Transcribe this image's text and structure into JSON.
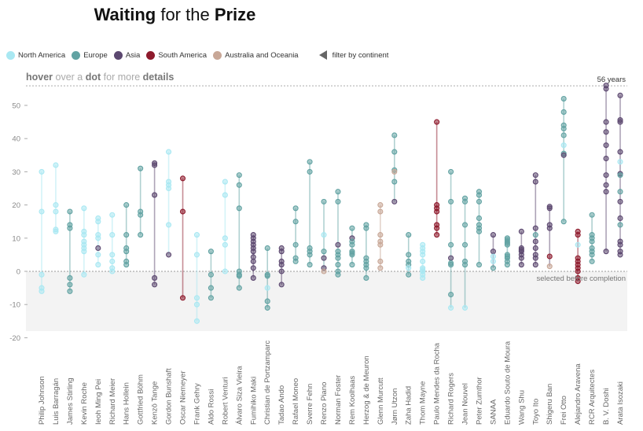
{
  "title": {
    "part1": "Waiting",
    "part2": " for the ",
    "part3": "Prize"
  },
  "legend": {
    "items": [
      {
        "code": "NA",
        "label": "North America",
        "color": "#a9e8f2"
      },
      {
        "code": "EU",
        "label": "Europe",
        "color": "#62a3a3"
      },
      {
        "code": "AS",
        "label": "Asia",
        "color": "#5c4870"
      },
      {
        "code": "SA",
        "label": "South America",
        "color": "#8e1a2c"
      },
      {
        "code": "AU",
        "label": "Australia and Oceania",
        "color": "#c8a797"
      }
    ],
    "filter_label": "filter by continent",
    "filter_icon": "triangle-left-icon"
  },
  "hint": {
    "w1": "hover",
    "w2": " over a ",
    "w3": "dot",
    "w4": " for more ",
    "w5": "details"
  },
  "chart_data": {
    "type": "scatter",
    "title": "Waiting for the Prize",
    "ylim": [
      -20,
      56
    ],
    "yticks": [
      -20,
      -10,
      0,
      10,
      20,
      30,
      40,
      50
    ],
    "max_line": {
      "value": 56,
      "label": "56 years"
    },
    "shaded_region": {
      "from": -18,
      "to": 0,
      "label": "selected before completion"
    },
    "grid": false,
    "legend_position": "top-left",
    "architects": [
      {
        "name": "Philip Johnson",
        "c": "NA",
        "dots": [
          30,
          18,
          -1,
          -5,
          -6
        ]
      },
      {
        "name": "Luis Barragán",
        "c": "NA",
        "dots": [
          32,
          20,
          18,
          12.6,
          12
        ]
      },
      {
        "name": "James Stirling",
        "c": "EU",
        "dots": [
          18,
          14,
          13,
          -2,
          -4,
          -6
        ]
      },
      {
        "name": "Kevin Roche",
        "c": "NA",
        "dots": [
          19,
          12,
          11,
          9,
          8,
          7,
          6,
          -1
        ]
      },
      {
        "name": "Ieoh Ming Pei",
        "c": "NA",
        "dots": [
          16,
          15,
          11,
          10,
          [
            7,
            "AS"
          ],
          5,
          2
        ]
      },
      {
        "name": "Richard Meier",
        "c": "NA",
        "dots": [
          17,
          11,
          5,
          3,
          1,
          0
        ]
      },
      {
        "name": "Hans Hollein",
        "c": "EU",
        "dots": [
          20,
          11,
          7,
          6,
          3,
          2
        ]
      },
      {
        "name": "Gottfried Böhm",
        "c": "EU",
        "dots": [
          31,
          18,
          17,
          11
        ]
      },
      {
        "name": "Kenzō Tange",
        "c": "AS",
        "dots": [
          32.6,
          32,
          23,
          -2,
          -4
        ]
      },
      {
        "name": "Gordon Bunshaft",
        "c": "NA",
        "dots": [
          36,
          27,
          26,
          25,
          14,
          [
            5,
            "AS"
          ]
        ]
      },
      {
        "name": "Oscar Niemeyer",
        "c": "SA",
        "dots": [
          28,
          18,
          -8
        ]
      },
      {
        "name": "Frank Gehry",
        "c": "NA",
        "dots": [
          11,
          5,
          -8,
          -10,
          -15
        ]
      },
      {
        "name": "Aldo Rossi",
        "c": "EU",
        "dots": [
          6,
          -1,
          -5,
          -8
        ]
      },
      {
        "name": "Robert Venturi",
        "c": "NA",
        "dots": [
          27,
          23,
          10,
          8,
          0
        ]
      },
      {
        "name": "Álvaro Siza Vieira",
        "c": "EU",
        "dots": [
          29,
          26,
          19,
          0,
          -1,
          -1.4,
          -5
        ]
      },
      {
        "name": "Fumihiko Maki",
        "c": "AS",
        "dots": [
          11,
          10,
          9,
          8,
          7,
          6,
          4.3,
          3,
          1,
          -2
        ]
      },
      {
        "name": "Christian de Portzamparc",
        "c": "EU",
        "dots": [
          7,
          -1,
          -1.4,
          [
            -5,
            "NA"
          ],
          -9,
          -11
        ]
      },
      {
        "name": "Tadao Ando",
        "c": "AS",
        "dots": [
          7,
          6,
          3,
          2,
          0,
          -4
        ]
      },
      {
        "name": "Rafael Moneo",
        "c": "EU",
        "dots": [
          19,
          15,
          8,
          4,
          3
        ]
      },
      {
        "name": "Sverre Fehn",
        "c": "EU",
        "dots": [
          33,
          30,
          7,
          6,
          5,
          2
        ]
      },
      {
        "name": "Renzo Piano",
        "c": "EU",
        "dots": [
          21,
          [
            11,
            "NA"
          ],
          6,
          [
            4,
            "AS"
          ],
          [
            1,
            "AS"
          ],
          [
            0,
            "AU"
          ]
        ]
      },
      {
        "name": "Norman Foster",
        "c": "EU",
        "dots": [
          24,
          21,
          [
            8,
            "AS"
          ],
          6,
          5,
          4,
          2,
          0,
          -1
        ]
      },
      {
        "name": "Rem Koolhaas",
        "c": "EU",
        "dots": [
          13,
          [
            10,
            "AS"
          ],
          9,
          8,
          6,
          5.5,
          5,
          2
        ]
      },
      {
        "name": "Herzog & de Meuron",
        "c": "EU",
        "dots": [
          14,
          13,
          4,
          3,
          2,
          1,
          -2
        ]
      },
      {
        "name": "Glenn Murcutt",
        "c": "AU",
        "dots": [
          20,
          18,
          11,
          9,
          8,
          3,
          1
        ]
      },
      {
        "name": "Jørn Utzon",
        "c": "EU",
        "dots": [
          41,
          36,
          30.5,
          [
            30,
            "AU"
          ],
          27,
          [
            21,
            "AS"
          ]
        ]
      },
      {
        "name": "Zaha Hadid",
        "c": "EU",
        "dots": [
          11,
          5,
          3,
          2,
          [
            1,
            "NA"
          ],
          -1
        ]
      },
      {
        "name": "Thom Mayne",
        "c": "NA",
        "dots": [
          8,
          7,
          6,
          5,
          3,
          1,
          0.5,
          0,
          -1,
          -2
        ]
      },
      {
        "name": "Paulo Mendes da Rocha",
        "c": "SA",
        "dots": [
          45,
          20,
          19,
          18,
          14,
          13,
          11
        ]
      },
      {
        "name": "Richard Rogers",
        "c": "EU",
        "dots": [
          30,
          21,
          8,
          [
            4,
            "AS"
          ],
          2.5,
          2,
          -7,
          [
            -11,
            "NA"
          ]
        ]
      },
      {
        "name": "Jean Nouvel",
        "c": "EU",
        "dots": [
          22,
          21,
          14,
          8,
          3,
          2,
          [
            -11,
            "NA"
          ]
        ]
      },
      {
        "name": "Peter Zumthor",
        "c": "EU",
        "dots": [
          24,
          23,
          21,
          16,
          14,
          13,
          12,
          2
        ]
      },
      {
        "name": "SANAA",
        "c": "AS",
        "dots": [
          11,
          6,
          [
            4.5,
            "NA"
          ],
          [
            3,
            "NA"
          ],
          [
            1,
            "EU"
          ]
        ]
      },
      {
        "name": "Eduardo Souto de Moura",
        "c": "EU",
        "dots": [
          10,
          9.5,
          9,
          8.5,
          8,
          5,
          4.5,
          4,
          3,
          2
        ]
      },
      {
        "name": "Wang Shu",
        "c": "AS",
        "dots": [
          12,
          7,
          6.5,
          6,
          5,
          4,
          2
        ]
      },
      {
        "name": "Toyo Ito",
        "c": "AS",
        "dots": [
          29,
          27,
          13,
          [
            11,
            "EU"
          ],
          9,
          7,
          5,
          4,
          2
        ]
      },
      {
        "name": "Shigeru Ban",
        "c": "AS",
        "dots": [
          19.5,
          19,
          14,
          13,
          [
            4.5,
            "SA"
          ],
          [
            1.5,
            "AU"
          ]
        ]
      },
      {
        "name": "Frei Otto",
        "c": "EU",
        "dots": [
          52,
          48,
          44,
          43,
          41,
          [
            38,
            "NA"
          ],
          35.5,
          [
            35,
            "AS"
          ],
          15
        ]
      },
      {
        "name": "Alejandro Aravena",
        "c": "SA",
        "dots": [
          12,
          11,
          [
            8,
            "NA"
          ],
          4,
          3,
          2,
          1,
          0,
          -2,
          -3
        ]
      },
      {
        "name": "RCR Arquitectes",
        "c": "EU",
        "dots": [
          17,
          11,
          10,
          9,
          7,
          6,
          5,
          3
        ]
      },
      {
        "name": "B. V. Doshi",
        "c": "AS",
        "dots": [
          56,
          55,
          45,
          42,
          38,
          34,
          29,
          26,
          24,
          6
        ]
      },
      {
        "name": "Arata Isozaki",
        "c": "AS",
        "dots": [
          53,
          45.6,
          45,
          36,
          [
            33,
            "NA"
          ],
          29.4,
          [
            29,
            "EU"
          ],
          [
            24,
            "EU"
          ],
          21,
          16,
          [
            14,
            "EU"
          ],
          9,
          8,
          6,
          5
        ]
      }
    ]
  }
}
